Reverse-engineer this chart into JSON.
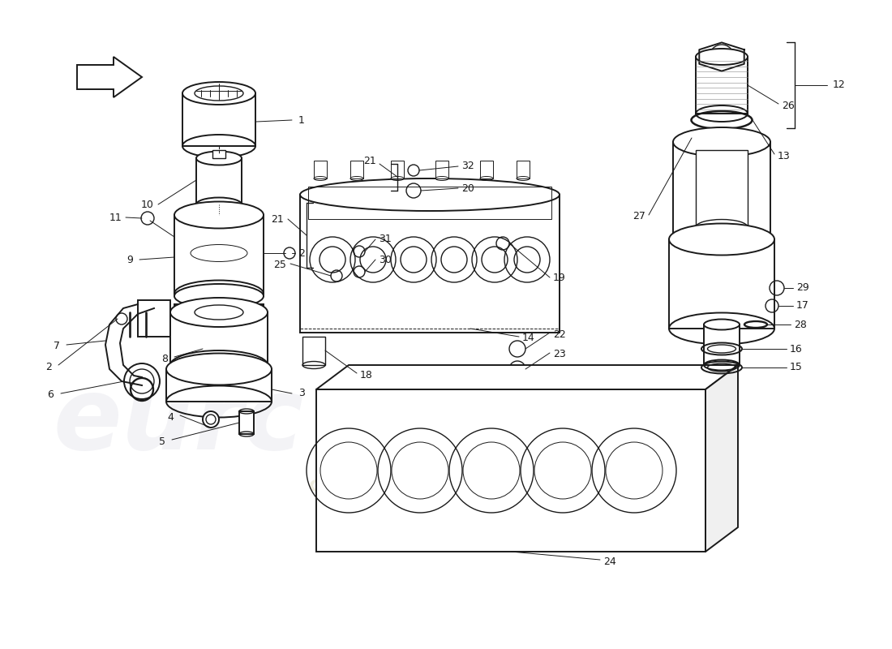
{
  "bg": "#ffffff",
  "lc": "#1a1a1a",
  "wm1_text": "eurc",
  "wm2_text": "a passion for...",
  "wm1_color": "#c0c0d0",
  "wm2_color": "#d0c8a0",
  "wm1_alpha": 0.18,
  "wm2_alpha": 0.35,
  "fig_w": 11.0,
  "fig_h": 8.0,
  "dpi": 100,
  "xmin": 0,
  "xmax": 1100,
  "ymin": 0,
  "ymax": 800
}
